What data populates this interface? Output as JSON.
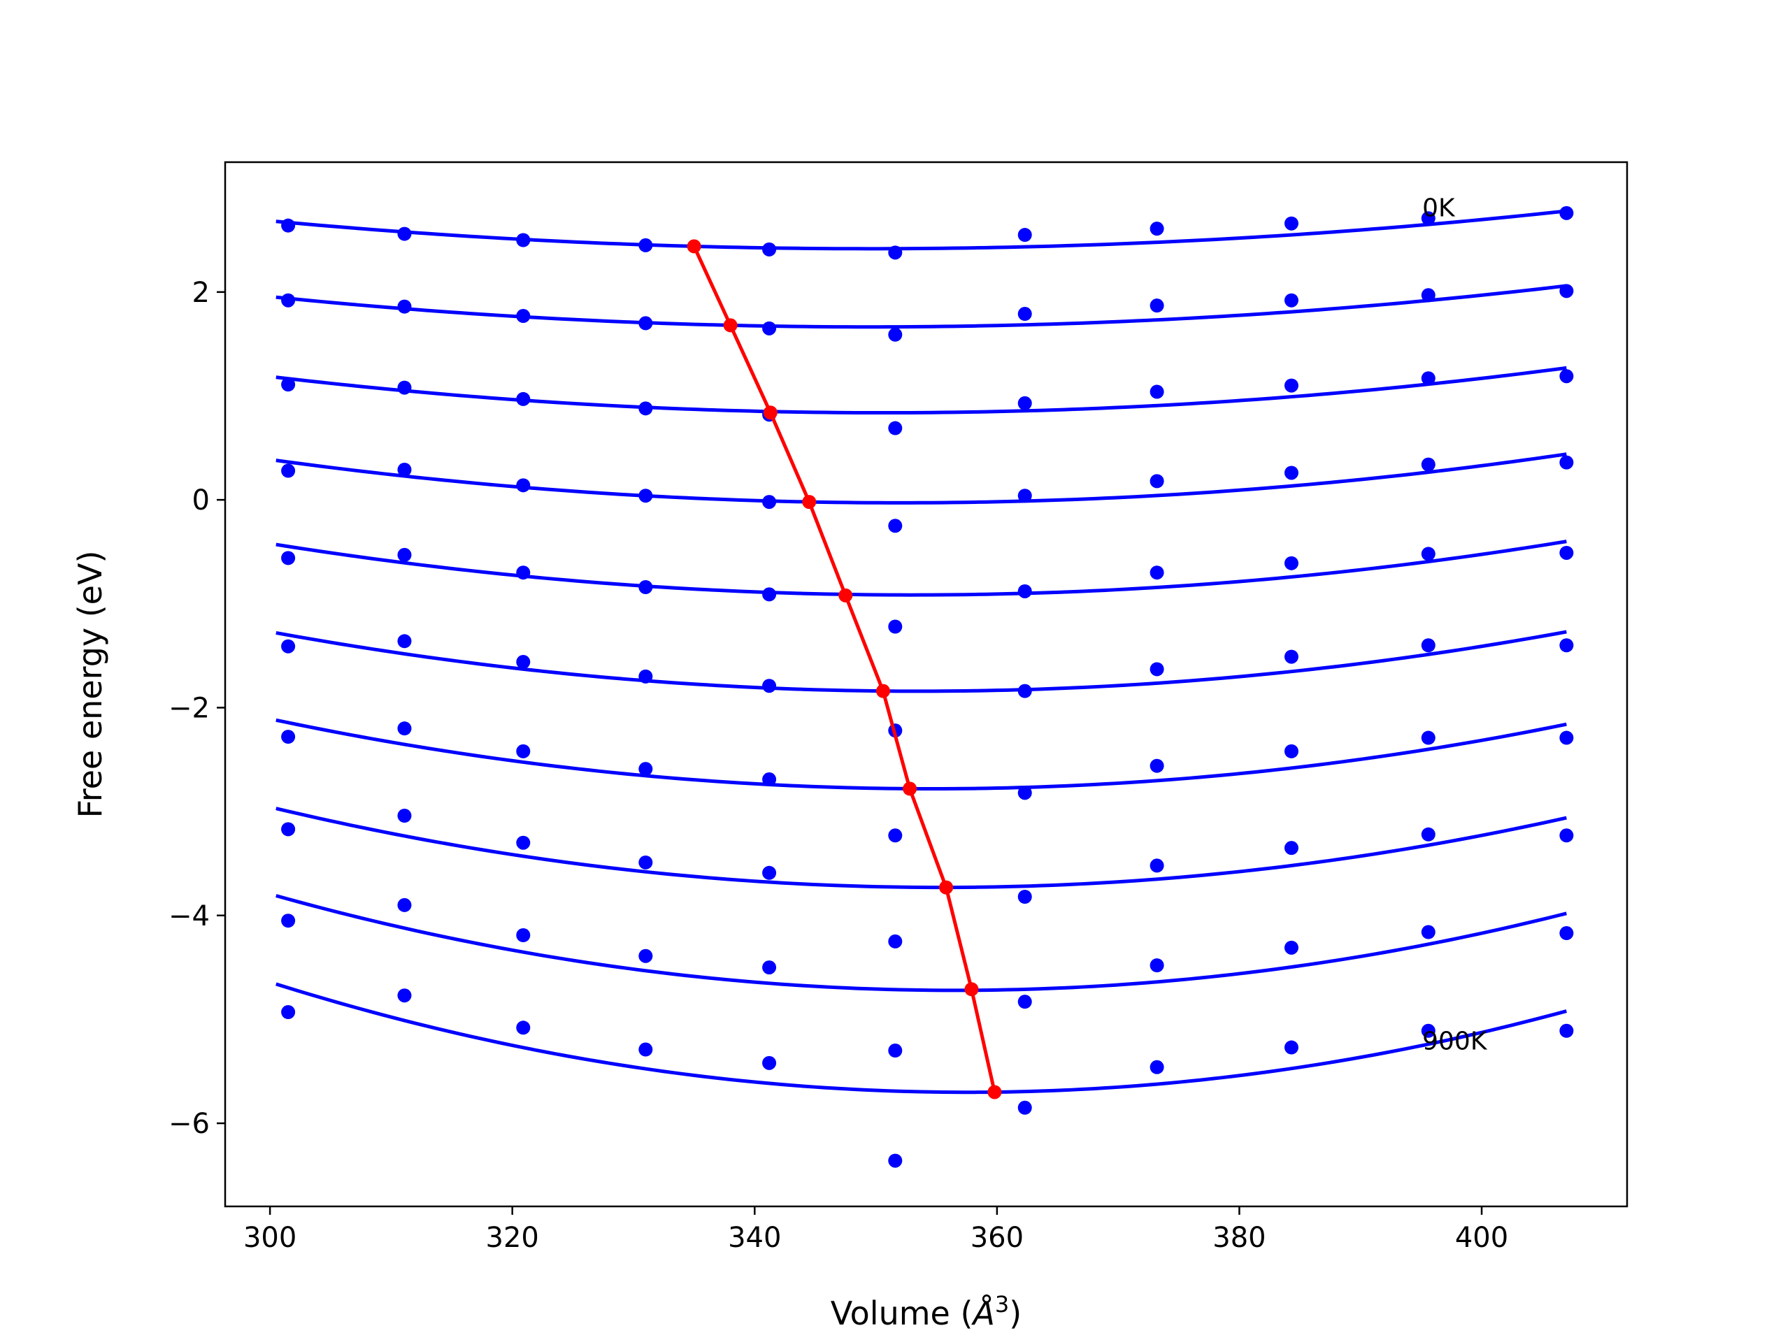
{
  "chart_data": {
    "type": "scatter",
    "title": "",
    "xlabel": "Volume",
    "xlabel_unit": "Å",
    "xlabel_unit_sup": "3",
    "ylabel": "Free energy (eV)",
    "xlim": [
      296.3,
      412.0
    ],
    "ylim": [
      -6.8,
      3.25
    ],
    "xticks": [
      300,
      320,
      340,
      360,
      380,
      400
    ],
    "yticks": [
      -6,
      -4,
      -2,
      0,
      2
    ],
    "ytick_labels": [
      "−6",
      "−4",
      "−2",
      "0",
      "2"
    ],
    "grid": false,
    "legend": "none",
    "x": [
      301.5,
      311.1,
      320.9,
      331.0,
      341.2,
      351.6,
      362.3,
      373.2,
      384.3,
      395.6,
      407.0
    ],
    "series": [
      {
        "values": [
          2.64,
          2.56,
          2.5,
          2.45,
          2.41,
          2.38,
          2.55,
          2.61,
          2.66,
          2.71,
          2.76
        ],
        "fit": [
          2.68,
          2.44,
          2.78
        ]
      },
      {
        "values": [
          1.92,
          1.86,
          1.77,
          1.7,
          1.65,
          1.59,
          1.79,
          1.87,
          1.92,
          1.97,
          2.01
        ],
        "fit": [
          1.95,
          1.68,
          2.06
        ]
      },
      {
        "values": [
          1.11,
          1.08,
          0.97,
          0.88,
          0.82,
          0.69,
          0.93,
          1.04,
          1.1,
          1.17,
          1.19
        ],
        "fit": [
          1.18,
          0.85,
          1.27
        ]
      },
      {
        "values": [
          0.28,
          0.29,
          0.14,
          0.04,
          -0.02,
          -0.25,
          0.04,
          0.18,
          0.26,
          0.34,
          0.36
        ],
        "fit": [
          0.38,
          -0.02,
          0.44
        ]
      },
      {
        "values": [
          -0.56,
          -0.53,
          -0.7,
          -0.84,
          -0.91,
          -1.22,
          -0.88,
          -0.7,
          -0.61,
          -0.52,
          -0.51
        ],
        "fit": [
          -0.43,
          -0.91,
          -0.4
        ]
      },
      {
        "values": [
          -1.41,
          -1.36,
          -1.56,
          -1.7,
          -1.79,
          -2.22,
          -1.84,
          -1.63,
          -1.51,
          -1.4,
          -1.4
        ],
        "fit": [
          -1.28,
          -1.84,
          -1.27
        ]
      },
      {
        "values": [
          -2.28,
          -2.2,
          -2.42,
          -2.59,
          -2.69,
          -3.23,
          -2.82,
          -2.56,
          -2.42,
          -2.29,
          -2.29
        ],
        "fit": [
          -2.12,
          -2.78,
          -2.16
        ]
      },
      {
        "values": [
          -3.17,
          -3.04,
          -3.3,
          -3.49,
          -3.59,
          -4.25,
          -3.82,
          -3.52,
          -3.35,
          -3.22,
          -3.23
        ],
        "fit": [
          -2.97,
          -3.73,
          -3.06
        ]
      },
      {
        "values": [
          -4.05,
          -3.9,
          -4.19,
          -4.39,
          -4.5,
          -5.3,
          -4.83,
          -4.48,
          -4.31,
          -4.16,
          -4.17
        ],
        "fit": [
          -3.81,
          -4.72,
          -3.98
        ]
      },
      {
        "values": [
          -4.93,
          -4.77,
          -5.08,
          -5.29,
          -5.42,
          -6.36,
          -5.85,
          -5.46,
          -5.27,
          -5.11,
          -5.11
        ],
        "fit": [
          -4.66,
          -5.7,
          -4.92
        ]
      }
    ],
    "fit_x": [
      300.5,
      407.0
    ],
    "minima_line": {
      "x": [
        335.0,
        338.0,
        341.3,
        344.5,
        347.5,
        350.6,
        352.8,
        355.8,
        357.9,
        359.8
      ],
      "y": [
        2.44,
        1.68,
        0.84,
        -0.02,
        -0.92,
        -1.84,
        -2.78,
        -3.73,
        -4.71,
        -5.7
      ]
    },
    "annotations": [
      {
        "text": "0K",
        "x": 395.1,
        "y": 2.73
      },
      {
        "text": "900K",
        "x": 395.1,
        "y": -5.29
      }
    ],
    "colors": {
      "points": "#0000ff",
      "fit_curves": "#0000ff",
      "minima_line": "#ff0000",
      "axes": "#000000"
    }
  }
}
